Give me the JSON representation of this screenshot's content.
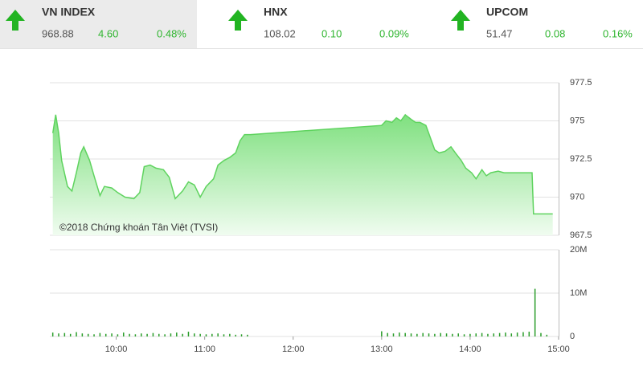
{
  "header": {
    "indices": [
      {
        "name": "VN INDEX",
        "value": "968.88",
        "change": "4.60",
        "percent": "0.48%"
      },
      {
        "name": "HNX",
        "value": "108.02",
        "change": "0.10",
        "percent": "0.09%"
      },
      {
        "name": "UPCOM",
        "value": "51.47",
        "change": "0.08",
        "percent": "0.16%"
      }
    ]
  },
  "chart_data": [
    {
      "type": "area",
      "annotation": "©2018 Chứng khoán Tân Việt (TVSI)",
      "color": "#5fd35f",
      "x": [
        557,
        559,
        561,
        563,
        567,
        570,
        573,
        576,
        578,
        582,
        585,
        589,
        592,
        597,
        601,
        606,
        612,
        616,
        619,
        623,
        627,
        632,
        636,
        640,
        645,
        649,
        653,
        657,
        661,
        666,
        669,
        673,
        677,
        681,
        684,
        687,
        691,
        780,
        783,
        787,
        790,
        793,
        796,
        800,
        803,
        806,
        810,
        813,
        816,
        819,
        823,
        827,
        830,
        834,
        837,
        841,
        844,
        848,
        851,
        854,
        859,
        863,
        867,
        875,
        882,
        883,
        896
      ],
      "values": [
        974.2,
        975.4,
        974.2,
        972.4,
        970.7,
        970.4,
        971.6,
        972.9,
        973.3,
        972.4,
        971.4,
        970.1,
        970.7,
        970.6,
        970.3,
        970.0,
        969.9,
        970.3,
        972.0,
        972.1,
        971.9,
        971.8,
        971.3,
        969.9,
        970.4,
        971.0,
        970.8,
        970.0,
        970.7,
        971.2,
        972.1,
        972.4,
        972.6,
        972.9,
        973.7,
        974.1,
        974.1,
        974.7,
        975.0,
        974.9,
        975.2,
        975.0,
        975.4,
        975.1,
        974.9,
        974.9,
        974.7,
        973.9,
        973.1,
        972.9,
        973.0,
        973.3,
        972.9,
        972.4,
        971.9,
        971.6,
        971.2,
        971.8,
        971.4,
        971.6,
        971.7,
        971.6,
        971.6,
        971.6,
        971.6,
        968.9,
        968.9
      ],
      "xlim": [
        555,
        900
      ],
      "ylim": [
        967.5,
        977.5
      ],
      "yticks": [
        967.5,
        970,
        972.5,
        975,
        977.5
      ],
      "grid": true
    },
    {
      "type": "bar",
      "color": "#2a9d2a",
      "x": [
        557,
        561,
        565,
        569,
        573,
        577,
        581,
        585,
        589,
        593,
        597,
        601,
        605,
        609,
        613,
        617,
        621,
        625,
        629,
        633,
        637,
        641,
        645,
        649,
        653,
        657,
        661,
        665,
        669,
        673,
        677,
        681,
        685,
        689,
        780,
        784,
        788,
        792,
        796,
        800,
        804,
        808,
        812,
        816,
        820,
        824,
        828,
        832,
        836,
        840,
        844,
        848,
        852,
        856,
        860,
        864,
        868,
        872,
        876,
        880,
        884,
        888,
        892
      ],
      "values": [
        900000,
        700000,
        800000,
        600000,
        1000000,
        700000,
        600000,
        500000,
        800000,
        600000,
        700000,
        500000,
        900000,
        600000,
        500000,
        700000,
        600000,
        800000,
        600000,
        500000,
        700000,
        900000,
        600000,
        1100000,
        700000,
        600000,
        500000,
        600000,
        700000,
        500000,
        600000,
        400000,
        500000,
        400000,
        1200000,
        800000,
        700000,
        900000,
        800000,
        700000,
        600000,
        800000,
        700000,
        600000,
        800000,
        700000,
        600000,
        700000,
        500000,
        600000,
        700000,
        800000,
        600000,
        700000,
        800000,
        900000,
        700000,
        900000,
        1000000,
        1100000,
        11000000,
        800000,
        400000
      ],
      "xlim": [
        555,
        900
      ],
      "ylim": [
        0,
        20000000
      ],
      "yticks": [
        0,
        {
          "value": 10000000,
          "label": "10M"
        },
        {
          "value": 20000000,
          "label": "20M"
        }
      ],
      "xticks": [
        {
          "value": 600,
          "label": "10:00"
        },
        {
          "value": 660,
          "label": "11:00"
        },
        {
          "value": 720,
          "label": "12:00"
        },
        {
          "value": 780,
          "label": "13:00"
        },
        {
          "value": 840,
          "label": "14:00"
        },
        {
          "value": 900,
          "label": "15:00"
        }
      ],
      "grid": true
    }
  ]
}
